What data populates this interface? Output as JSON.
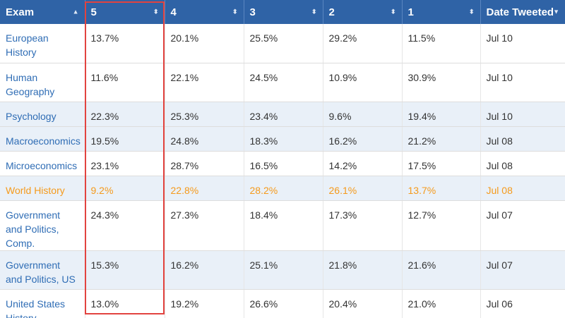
{
  "columns": [
    {
      "label": "Exam",
      "sort_icon": "sort-up-icon",
      "sort_glyph": "▲"
    },
    {
      "label": "5",
      "sort_icon": "sort-both-icon",
      "sort_glyph": "⬍"
    },
    {
      "label": "4",
      "sort_icon": "sort-both-icon",
      "sort_glyph": "⬍"
    },
    {
      "label": "3",
      "sort_icon": "sort-both-icon",
      "sort_glyph": "⬍"
    },
    {
      "label": "2",
      "sort_icon": "sort-both-icon",
      "sort_glyph": "⬍"
    },
    {
      "label": "1",
      "sort_icon": "sort-both-icon",
      "sort_glyph": "⬍"
    },
    {
      "label": "Date Tweeted",
      "sort_icon": "sort-down-icon",
      "sort_glyph": "▼"
    }
  ],
  "rows": [
    {
      "exam": "European History",
      "s5": "13.7%",
      "s4": "20.1%",
      "s3": "25.5%",
      "s2": "29.2%",
      "s1": "11.5%",
      "date": "Jul 10"
    },
    {
      "exam": "Human Geography",
      "s5": "11.6%",
      "s4": "22.1%",
      "s3": "24.5%",
      "s2": "10.9%",
      "s1": "30.9%",
      "date": "Jul 10"
    },
    {
      "exam": "Psychology",
      "s5": "22.3%",
      "s4": "25.3%",
      "s3": "23.4%",
      "s2": "9.6%",
      "s1": "19.4%",
      "date": "Jul 10"
    },
    {
      "exam": "Macroeconomics",
      "s5": "19.5%",
      "s4": "24.8%",
      "s3": "18.3%",
      "s2": "16.2%",
      "s1": "21.2%",
      "date": "Jul 08"
    },
    {
      "exam": "Microeconomics",
      "s5": "23.1%",
      "s4": "28.7%",
      "s3": "16.5%",
      "s2": "14.2%",
      "s1": "17.5%",
      "date": "Jul 08"
    },
    {
      "exam": "World History",
      "s5": "9.2%",
      "s4": "22.8%",
      "s3": "28.2%",
      "s2": "26.1%",
      "s1": "13.7%",
      "date": "Jul 08"
    },
    {
      "exam": "Government and Politics, Comp.",
      "s5": "24.3%",
      "s4": "27.3%",
      "s3": "18.4%",
      "s2": "17.3%",
      "s1": "12.7%",
      "date": "Jul 07"
    },
    {
      "exam": "Government and Politics, US",
      "s5": "15.3%",
      "s4": "16.2%",
      "s3": "25.1%",
      "s2": "21.8%",
      "s1": "21.6%",
      "date": "Jul 07"
    },
    {
      "exam": "United States History",
      "s5": "13.0%",
      "s4": "19.2%",
      "s3": "26.6%",
      "s2": "20.4%",
      "s1": "21.0%",
      "date": "Jul 06"
    }
  ],
  "colors": {
    "header_bg": "#2f63a6",
    "link": "#2f6db5",
    "highlight_row_text": "#f59a1b",
    "alt_row_bg": "#e9f0f8",
    "annotation_box": "#e2433f"
  }
}
